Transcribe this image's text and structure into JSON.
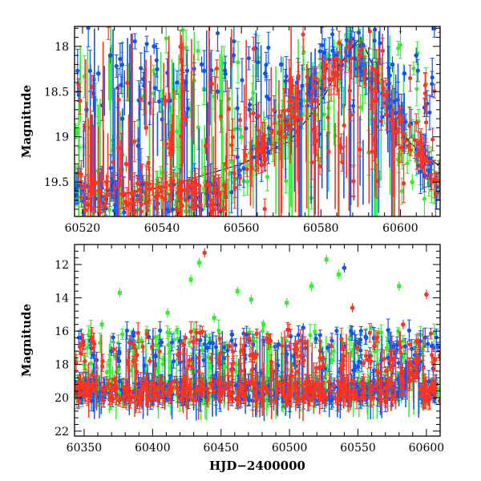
{
  "colors": {
    "green": "#33ee33",
    "blue": "#1155ee",
    "red": "#ff3322",
    "model": "#000000"
  },
  "chart_data": [
    {
      "type": "scatter",
      "xlabel": "",
      "ylabel": "Magnitude",
      "xlim": [
        60518,
        60610
      ],
      "ylim": [
        19.88,
        17.78
      ],
      "y_inverted": true,
      "xticks": [
        60520,
        60540,
        60560,
        60580,
        60600
      ],
      "yticks": [
        18,
        18.5,
        19,
        19.5
      ],
      "xticklabels": [
        "60520",
        "60540",
        "60560",
        "60580",
        "60600"
      ],
      "yticklabels": [
        "18",
        "18.5",
        "19",
        "19.5"
      ],
      "error_bars": true,
      "model_line": {
        "x": [
          60520,
          60540,
          60560,
          60572,
          60580,
          60586,
          60590,
          60596,
          60602,
          60610
        ],
        "y": [
          19.7,
          19.56,
          19.3,
          19.05,
          18.62,
          18.12,
          17.9,
          18.52,
          19.05,
          19.33
        ]
      },
      "series": [
        {
          "color_key": "blue",
          "x": [
            60519,
            60521,
            60524,
            60527,
            60530,
            60534,
            60538,
            60542,
            60546,
            60550,
            60554,
            60558,
            60562,
            60566,
            60570,
            60574,
            60578,
            60584,
            60590,
            60594,
            60598,
            60601,
            60604
          ],
          "y": [
            19.4,
            18.7,
            18.3,
            18.1,
            18.8,
            19.1,
            18.0,
            18.6,
            18.4,
            18.2,
            18.5,
            18.1,
            18.7,
            18.3,
            18.2,
            18.4,
            18.6,
            18.1,
            18.0,
            18.5,
            18.2,
            18.3,
            18.1
          ]
        },
        {
          "color_key": "green",
          "x": [
            60522,
            60530,
            60540,
            60547,
            60555,
            60560,
            60566,
            60572,
            60578,
            60582,
            60587,
            60592,
            60597,
            60603
          ],
          "y": [
            18.9,
            19.2,
            19.4,
            18.7,
            18.5,
            19.0,
            18.3,
            18.9,
            18.7,
            18.1,
            18.0,
            18.3,
            18.6,
            19.5
          ]
        },
        {
          "color_key": "red",
          "x": [
            60519,
            60522,
            60526,
            60531,
            60536,
            60541,
            60546,
            60551,
            60556,
            60561,
            60566,
            60571,
            60575,
            60579,
            60583,
            60587,
            60590,
            60594,
            60598,
            60602,
            60605
          ],
          "y": [
            19.4,
            19.6,
            19.5,
            19.3,
            18.9,
            18.6,
            18.8,
            19.1,
            19.3,
            19.2,
            19.1,
            19.0,
            18.8,
            18.6,
            18.3,
            18.0,
            18.1,
            18.6,
            18.9,
            19.1,
            19.2
          ]
        }
      ]
    },
    {
      "type": "scatter",
      "xlabel": "HJD−2400000",
      "ylabel": "Magnitude",
      "xlim": [
        60343,
        60610
      ],
      "ylim": [
        22.3,
        10.8
      ],
      "y_inverted": true,
      "xticks": [
        60350,
        60400,
        60450,
        60500,
        60550,
        60600
      ],
      "yticks": [
        12,
        14,
        16,
        18,
        20,
        22
      ],
      "xticklabels": [
        "60350",
        "60400",
        "60450",
        "60500",
        "60550",
        "60600"
      ],
      "yticklabels": [
        "12",
        "14",
        "16",
        "18",
        "20",
        "22"
      ],
      "error_bars": true,
      "series": [
        {
          "color_key": "green",
          "x": [
            60363,
            60376,
            60392,
            60411,
            60428,
            60434,
            60445,
            60462,
            60472,
            60481,
            60498,
            60516,
            60527,
            60536,
            60548,
            60560,
            60580,
            60598
          ],
          "y": [
            15.6,
            13.7,
            16.6,
            14.9,
            12.9,
            11.9,
            15.2,
            13.6,
            14.1,
            15.6,
            14.3,
            13.3,
            11.7,
            12.6,
            16.8,
            15.8,
            13.3,
            19.9
          ]
        },
        {
          "color_key": "blue",
          "x": [
            60370,
            60386,
            60402,
            60420,
            60440,
            60458,
            60475,
            60492,
            60510,
            60528,
            60540,
            60556,
            60572,
            60590,
            60604
          ],
          "y": [
            17.2,
            16.1,
            17.5,
            16.6,
            17.0,
            16.2,
            17.4,
            16.8,
            15.8,
            17.0,
            12.2,
            16.4,
            17.6,
            17.9,
            16.9
          ]
        },
        {
          "color_key": "red",
          "x": [
            60356,
            60372,
            60398,
            60424,
            60438,
            60456,
            60476,
            60504,
            60522,
            60546,
            60562,
            60583,
            60600
          ],
          "y": [
            18.6,
            18.9,
            17.8,
            16.4,
            11.3,
            16.9,
            17.4,
            16.8,
            18.2,
            14.6,
            16.9,
            15.6,
            13.8
          ]
        }
      ]
    }
  ]
}
